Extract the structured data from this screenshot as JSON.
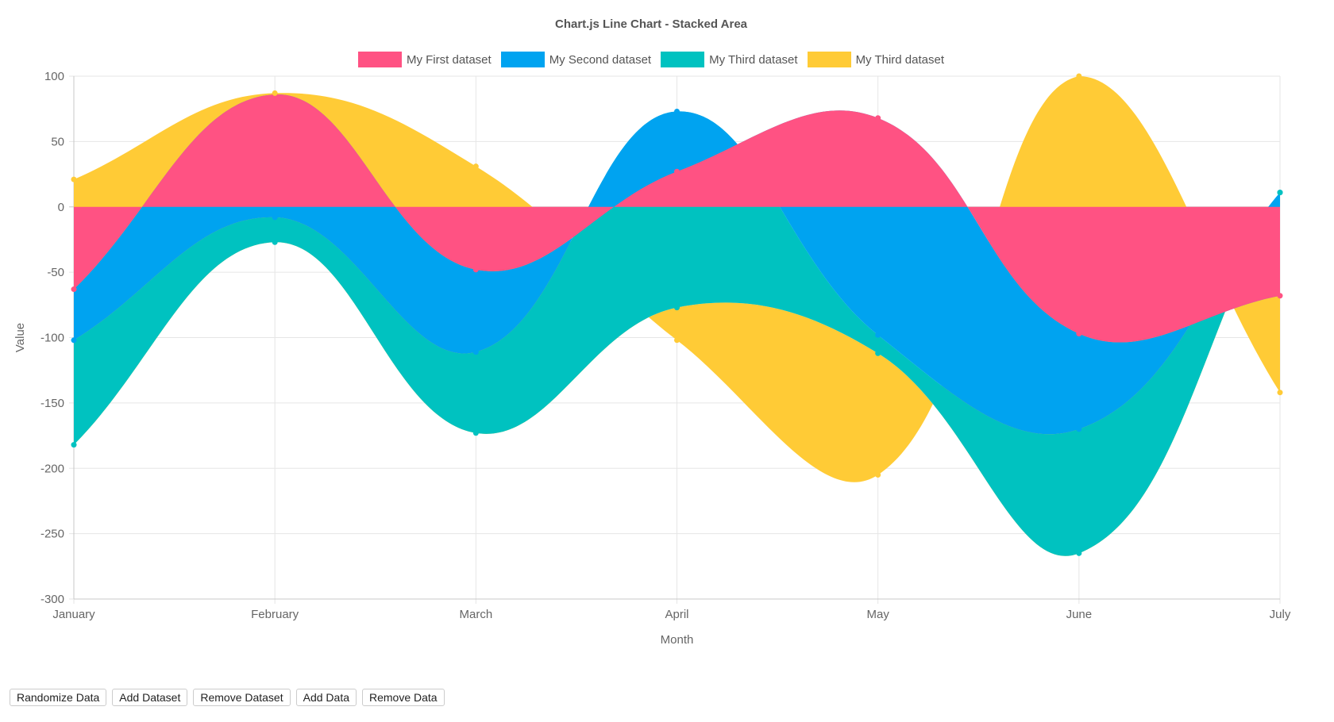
{
  "chart_data": {
    "type": "area",
    "stacked": true,
    "title": "Chart.js Line Chart - Stacked Area",
    "xlabel": "Month",
    "ylabel": "Value",
    "categories": [
      "January",
      "February",
      "March",
      "April",
      "May",
      "June",
      "July"
    ],
    "ylim": [
      -300,
      100
    ],
    "yticks": [
      100,
      50,
      0,
      -50,
      -100,
      -150,
      -200,
      -250,
      -300
    ],
    "grid": true,
    "legend_position": "top",
    "series": [
      {
        "name": "My First dataset",
        "color": "#ff5283",
        "values": [
          -63,
          86,
          -48,
          27,
          68,
          -97,
          -68
        ]
      },
      {
        "name": "My Second dataset",
        "color": "#00a3f0",
        "values": [
          -39,
          -8,
          -63,
          46,
          -98,
          -73,
          11
        ]
      },
      {
        "name": "My Third dataset",
        "color": "#00c2c0",
        "values": [
          -80,
          -19,
          -62,
          -77,
          -14,
          -95,
          0
        ]
      },
      {
        "name": "My Third dataset",
        "color": "#ffcb36",
        "values": [
          21,
          1,
          31,
          -25,
          -93,
          100,
          -74
        ]
      }
    ]
  },
  "buttons": {
    "randomize": "Randomize Data",
    "add_dataset": "Add Dataset",
    "remove_dataset": "Remove Dataset",
    "add_data": "Add Data",
    "remove_data": "Remove Data"
  }
}
